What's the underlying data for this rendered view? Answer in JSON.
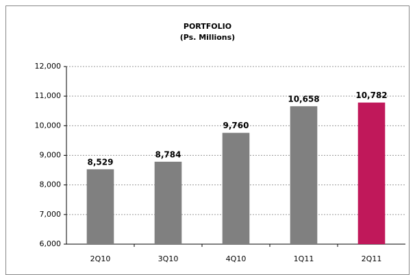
{
  "chart_data": {
    "type": "bar",
    "title": [
      "PORTFOLIO",
      "(Ps. Millions)"
    ],
    "categories": [
      "2Q10",
      "3Q10",
      "4Q10",
      "1Q11",
      "2Q11"
    ],
    "values": [
      8529,
      8784,
      9760,
      10658,
      10782
    ],
    "value_labels": [
      "8,529",
      "8,784",
      "9,760",
      "10,658",
      "10,782"
    ],
    "colors": [
      "#808080",
      "#808080",
      "#808080",
      "#808080",
      "#c0185a"
    ],
    "ylim": [
      6000,
      12000
    ],
    "yticks": [
      {
        "value": 6000,
        "label": "6,000"
      },
      {
        "value": 7000,
        "label": "7,000"
      },
      {
        "value": 8000,
        "label": "8,000"
      },
      {
        "value": 9000,
        "label": "9,000"
      },
      {
        "value": 10000,
        "label": "10,000"
      },
      {
        "value": 11000,
        "label": "11,000"
      },
      {
        "value": 12000,
        "label": "12,000"
      }
    ],
    "grid": true
  }
}
